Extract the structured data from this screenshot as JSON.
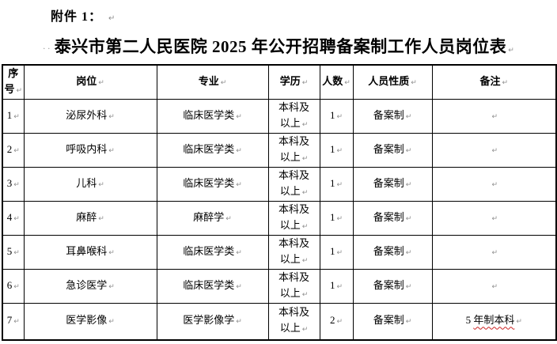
{
  "page": {
    "attachment_label": "附件 1：",
    "title": "泰兴市第二人民医院 2025 年公开招聘备案制工作人员岗位表",
    "space_marks": "··",
    "paragraph_mark": "↵"
  },
  "table": {
    "headers": [
      "序号",
      "岗位",
      "专业",
      "学历",
      "人数",
      "人员性质",
      "备注"
    ],
    "column_keys": [
      "no",
      "position",
      "major",
      "education",
      "count",
      "nature",
      "remark"
    ],
    "rows": [
      {
        "no": "1",
        "position": "泌尿外科",
        "major": "临床医学类",
        "education": "本科及以上",
        "count": "1",
        "nature": "备案制",
        "remark": ""
      },
      {
        "no": "2",
        "position": "呼吸内科",
        "major": "临床医学类",
        "education": "本科及以上",
        "count": "1",
        "nature": "备案制",
        "remark": ""
      },
      {
        "no": "3",
        "position": "儿科",
        "major": "临床医学类",
        "education": "本科及以上",
        "count": "1",
        "nature": "备案制",
        "remark": ""
      },
      {
        "no": "4",
        "position": "麻醉",
        "major": "麻醉学",
        "education": "本科及以上",
        "count": "1",
        "nature": "备案制",
        "remark": ""
      },
      {
        "no": "5",
        "position": "耳鼻喉科",
        "major": "临床医学类",
        "education": "本科及以上",
        "count": "1",
        "nature": "备案制",
        "remark": ""
      },
      {
        "no": "6",
        "position": "急诊医学",
        "major": "临床医学类",
        "education": "本科及以上",
        "count": "1",
        "nature": "备案制",
        "remark": ""
      },
      {
        "no": "7",
        "position": "医学影像",
        "major": "医学影像学",
        "education": "本科及以上",
        "count": "2",
        "nature": "备案制",
        "remark": "5 年制本科",
        "remark_wavy": "年制本科"
      }
    ],
    "colors": {
      "border": "#000000",
      "spellcheck_underline": "#cc2222",
      "paragraph_mark": "#8f8f8f"
    }
  }
}
